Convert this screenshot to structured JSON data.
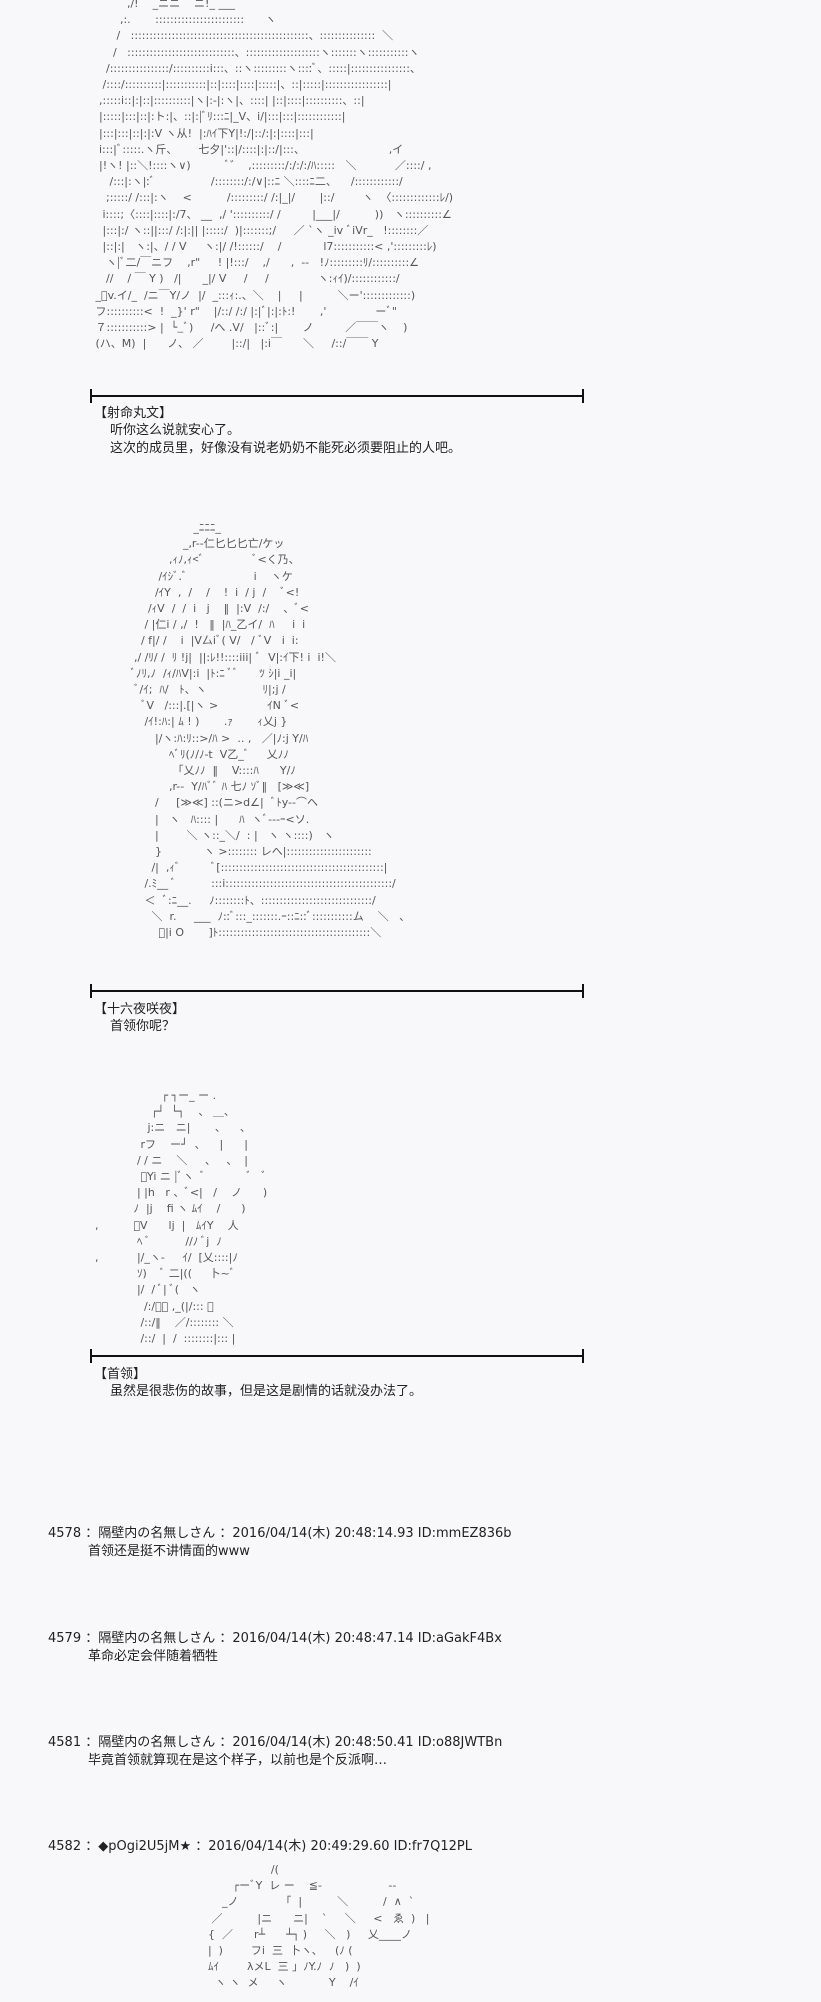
{
  "scenes": [
    {
      "art": [
        "          ,/!    _ニニ    ニ!_ ___",
        "        ,:.       ::::::::::::::::::::::::      ヽ",
        "       /   ::::::::::::::::::::::::::::::::::::::::::::::::、:::::::::::::::  ＼",
        "      /   :::::::::::::::::::::::::::::、::::::::::::::::::::ヽ:::::::ヽ:::::::::::ヽ",
        "    /::::::::::::::::/::::::::::i:::、::ヽ:::::::::ヽ::::ﾞ、:::::|::::::::::::::::、",
        "   /::::/::::::::::|:::::::::::|::|::::|::::|:::::|、::|:::::|:::::::::::::::::|",
        "  ,:::::i::|:|::|::::::::::|ヽ|:-|:ヽ|、::::| |::|::::|::::::::::、::|",
        "  |:::::|:::|::|:ト:|、::|:|ﾞﾘ:::ﾆ|_V、i/|:::|:::|::::::::::::|",
        "  |:::|:::|::|:|:V ヽ从!  |:ﾊｲ下Y|!:/|::/:|:|::::|:::|",
        "  i:::|ﾞ:::::.ヽ斤、      七夕|'::|/::::|:|::/|:::、                        ,イ",
        "  |!ヽ! |::＼!::::ヽ∨)          ﾞ゛  ,:::::::::/:/:/:/ﾊ:::::   ＼           ／::::/ ,",
        "     /:::|:ヽ|:ﾞ                /::::::::/:/∨|::ﾆ ＼::::ﾆ二、    /::::::::::::/",
        "    ;:::::/ /:::|:ヽ    <          /:::::::::/ /:|_|/       |::/        ヽ  〈:::::::::::::ﾚ/)",
        "   i::::;〈::::|::::|:/7、 __  ,/ '::::::::::/ /         |___|/          ))   ヽ::::::::::∠",
        "   |:::|:/ ヽ::||:::/ /:|:|| |:::::/  )|:::::::;/     ／ `ヽ _iv ﾞiVr_   !::::::::／",
        "   |::|:|   ヽ:|、/ / V     ヽ:|/ /!::::::/    /            l7:::::::::::< ,':::::::::ﾚ)",
        "    ヽ|ﾞ二/￣ニフ    ,r\"     ! |!:::/    ,/      ,  --   !ﾉ:::::::::ﾘ/::::::::::∠",
        "    //    / ￣ Y )   /|      _|/ V     /     /              ヽ:ｨｲ)/::::::::::::/",
        " _ﾞv.イ/_  /ニ￣Y/ノ  |/  _:::ｨ:.、＼    |     |          ＼ー':::::::::::::)",
        " フ::::::::::<  !  _}' r\"    |/::/ /:/ |:|ﾞ|:|:ﾄ:!       ,'              ーﾞ\"",
        " ７:::::::::::> |  └_ﾞ)     /へ .V/   |::ﾞ:|       ノ         ／￣￣ヽ    )",
        " (ハ、M)  |      ノ、 ／        |::/|   |:i￣      ＼     /::/￣￣ Y"
      ],
      "speaker": "【射命丸文】",
      "lines": [
        "听你这么说就安心了。",
        "这次的成员里，好像没有说老奶奶不能死必须要阻止的人吧。"
      ]
    },
    {
      "art": [
        "                     _ﾆﾆﾆ_",
        "                  _,r--仁匕匕匕亡/ケッ",
        "              ,ｨﾉ,ｨ<ﾞ              ﾞ<く乃、",
        "           /ｲｼﾞ.ﾞ                   i    ヽケ",
        "          /ｲY  ,  /    /    !  i  / j  /    ﾞ<!",
        "        /ｨV  /  /  i   j    ‖  |:V  /:/    、ﾞ<",
        "       / |仁i / ,/  !   ‖  |ﾊ_乙イ/  ﾊ     i  i",
        "      / f|/ /    i  |V厶iﾞ( V/   / ﾞV   i  i:",
        "    ,/ /ﾘ/ /  ﾘ !j|  ||:ﾚ!!::::iii| ﾞ  V|:ｲ下! i  i!＼",
        "   ﾞﾉﾘ,ﾉ  /ｨ/ﾊV|:i  |ﾄ:ﾆ ﾞﾞ      ﾂ ｼ|i _i|",
        "    ﾞ/ｲ;  ﾊ/   ﾄ、ヽ                ﾘ|;j /",
        "      ﾞV   /:::|.[|ヽ >              ｲN ﾞ<",
        "       /ｲ!:ﾊ:| ﾑ ! )       .ｧ       ｨ乂j }",
        "          |/ヽ:ﾊ:ﾘ::>/ﾊ >  .. ,   ／|ﾉ:j Y/ﾊ",
        "              ﾍﾞﾘ(ﾉ/ﾉ-t  V乙_ﾞ     乂ﾉﾉ",
        "               「乂ﾉﾉ  ‖    V::::ﾊ      Y/ﾉ",
        "              ,r--  Y/ﾊﾞﾞ ﾊ 七ﾉ ｿﾞ‖   [≫≪]",
        "          /     [≫≪] ::(ニ>d∠|  ﾞﾄy--⌒ヘ",
        "          |   ヽ   ﾊ:::: |      ﾊ  ヽﾞ---ｰ<ソ.",
        "          |        ＼ ヽ::_＼/  : |   ヽ ヽ::::)   ヽ",
        "          }            ヽ >:::::::: レへ|:::::::::::::::::::::::",
        "         /|  ,ｨﾞ         ﾞ[::::::::::::::::::::::::::::::::::::::::::::|",
        "       /.ﾐ__ ﾞ          :::i:::::::::::::::::::::::::::::::::::::::::::::/",
        "       ＜  ﾞ:ﾆ__.     ﾉ::::::::ﾄ、::::::::::::::::::::::::::::::/",
        "         ＼  r.     ___  ﾉ::ﾞ:::_:::::::.ｰ::ﾆ::ﾞ:::::::::::ム    ＼   、",
        "           ﾞ|i O       ]ﾄ:::::::::::::::::::::::::::::::::::::::::＼"
      ],
      "speaker": "【十六夜咲夜】",
      "lines": [
        "首领你呢？"
      ]
    },
    {
      "art": [
        "                     ┌ ┐ー_ ー .",
        "                  ┌┘  └┐    、 ＿、",
        "                 j:ニ   ニ|       、    、",
        "               rフ    ー┘  、    |      |",
        "              / / ニ    ＼     、   、  |",
        "               ﾞYi ニ |ﾞヽ  ﾞ            ﾞ   ﾞ",
        "              | |h   r 、ﾞ<|   /    ノ      )",
        "             ﾉ  |j    fi ヽ ﾑｲ    /      )",
        "  ,          ﾞV      lj  |   ﾑｲY    人",
        "              ﾍ ﾞ          //ﾉ ﾞj  ﾉ",
        "  ,           |/_ヽ-     ｲ/  [乂::::|ﾉ",
        "              ｿ)    ﾞ 二|((     卜~ﾞ",
        "              |/  / ﾞ| ﾞ(   ヽ",
        "                /:/ﾞ、 ,_(|/::: ＼",
        "               /::/‖    ／/:::::::: ＼",
        "               /::/  |  /  ::::::::|::: |"
      ],
      "speaker": "【首领】",
      "lines": [
        "虽然是很悲伤的故事，但是这是剧情的话就没办法了。"
      ]
    }
  ],
  "posts": [
    {
      "number": "4578",
      "name": "隔壁内の名無しさん",
      "date": "2016/04/14(木) 20:48:14.93",
      "id": "ID:mmEZ836b",
      "body": "首领还是挺不讲情面的www"
    },
    {
      "number": "4579",
      "name": "隔壁内の名無しさん",
      "date": "2016/04/14(木) 20:48:47.14",
      "id": "ID:aGakF4Bx",
      "body": "革命必定会伴随着牺牲"
    },
    {
      "number": "4581",
      "name": "隔壁内の名無しさん",
      "date": "2016/04/14(木) 20:48:50.41",
      "id": "ID:o88JWTBn",
      "body": "毕竟首领就算现在是这个样子，以前也是个反派啊…"
    },
    {
      "number": "4582",
      "name": "◆pOgi2U5jM★",
      "date": "2016/04/14(木) 20:49:29.60",
      "id": "ID:fr7Q12PL",
      "body": ""
    }
  ],
  "final_art": [
    "                          /(",
    "               ┌ーﾞY  レ ー    ≦-                   --",
    "            _ノ            「  |          ＼          /  ∧  `",
    "         ／          |ニ      ニ|    `     ＼     <   ゑ  )   |",
    "        {  ／      r┴      ┴┐ )     ＼   )     乂____ノ",
    "        |  )        フi  三  卜ヽ､     (ﾉ (",
    "        ﾑｲ        λメL  三 」ﾉY.ﾉ  ﾉ   )  )",
    "          ヽ ヽ  メ     ヽ            Y    /ｲ"
  ]
}
